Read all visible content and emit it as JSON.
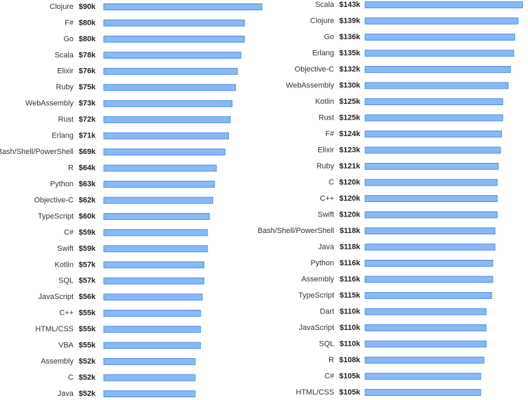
{
  "chart_data": [
    {
      "type": "bar",
      "orientation": "horizontal",
      "color": "#8ab8f5",
      "categories": [
        "Clojure",
        "F#",
        "Go",
        "Scala",
        "Elixir",
        "Ruby",
        "WebAssembly",
        "Rust",
        "Erlang",
        "Bash/Shell/PowerShell",
        "R",
        "Python",
        "Objective-C",
        "TypeScript",
        "C#",
        "Swift",
        "Kotlin",
        "SQL",
        "JavaScript",
        "C++",
        "HTML/CSS",
        "VBA",
        "Assembly",
        "C",
        "Java"
      ],
      "values": [
        90000,
        80000,
        80000,
        78000,
        76000,
        75000,
        73000,
        72000,
        71000,
        69000,
        64000,
        63000,
        62000,
        60000,
        59000,
        59000,
        57000,
        57000,
        56000,
        55000,
        55000,
        55000,
        52000,
        52000,
        52000
      ],
      "value_labels": [
        "$90k",
        "$80k",
        "$80k",
        "$78k",
        "$76k",
        "$75k",
        "$73k",
        "$72k",
        "$71k",
        "$69k",
        "$64k",
        "$63k",
        "$62k",
        "$60k",
        "$59k",
        "$59k",
        "$57k",
        "$57k",
        "$56k",
        "$55k",
        "$55k",
        "$55k",
        "$52k",
        "$52k",
        "$52k"
      ]
    },
    {
      "type": "bar",
      "orientation": "horizontal",
      "color": "#8ab8f5",
      "categories": [
        "Scala",
        "Clojure",
        "Go",
        "Erlang",
        "Objective-C",
        "WebAssembly",
        "Kotlin",
        "Rust",
        "F#",
        "Elixir",
        "Ruby",
        "C",
        "C++",
        "Swift",
        "Bash/Shell/PowerShell",
        "Java",
        "Python",
        "Assembly",
        "TypeScript",
        "Dart",
        "JavaScript",
        "SQL",
        "R",
        "C#",
        "HTML/CSS"
      ],
      "values": [
        143000,
        139000,
        136000,
        135000,
        132000,
        130000,
        125000,
        125000,
        124000,
        123000,
        121000,
        120000,
        120000,
        120000,
        118000,
        118000,
        116000,
        116000,
        115000,
        110000,
        110000,
        110000,
        108000,
        105000,
        105000
      ],
      "value_labels": [
        "$143k",
        "$139k",
        "$136k",
        "$135k",
        "$132k",
        "$130k",
        "$125k",
        "$125k",
        "$124k",
        "$123k",
        "$121k",
        "$120k",
        "$120k",
        "$120k",
        "$118k",
        "$118k",
        "$116k",
        "$116k",
        "$115k",
        "$110k",
        "$110k",
        "$110k",
        "$108k",
        "$105k",
        "$105k"
      ]
    }
  ]
}
